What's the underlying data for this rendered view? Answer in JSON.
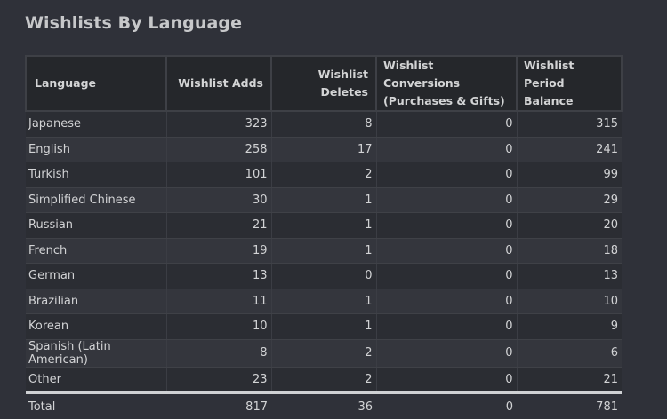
{
  "page": {
    "title": "Wishlists By Language"
  },
  "table": {
    "headers": [
      "Language",
      "Wishlist Adds",
      "Wishlist Deletes",
      "Wishlist Conversions (Purchases & Gifts)",
      "Wishlist Period Balance"
    ],
    "rows": [
      {
        "language": "Japanese",
        "adds": "323",
        "deletes": "8",
        "conversions": "0",
        "balance": "315"
      },
      {
        "language": "English",
        "adds": "258",
        "deletes": "17",
        "conversions": "0",
        "balance": "241"
      },
      {
        "language": "Turkish",
        "adds": "101",
        "deletes": "2",
        "conversions": "0",
        "balance": "99"
      },
      {
        "language": "Simplified Chinese",
        "adds": "30",
        "deletes": "1",
        "conversions": "0",
        "balance": "29"
      },
      {
        "language": "Russian",
        "adds": "21",
        "deletes": "1",
        "conversions": "0",
        "balance": "20"
      },
      {
        "language": "French",
        "adds": "19",
        "deletes": "1",
        "conversions": "0",
        "balance": "18"
      },
      {
        "language": "German",
        "adds": "13",
        "deletes": "0",
        "conversions": "0",
        "balance": "13"
      },
      {
        "language": "Brazilian",
        "adds": "11",
        "deletes": "1",
        "conversions": "0",
        "balance": "10"
      },
      {
        "language": "Korean",
        "adds": "10",
        "deletes": "1",
        "conversions": "0",
        "balance": "9"
      },
      {
        "language": "Spanish (Latin American)",
        "adds": "8",
        "deletes": "2",
        "conversions": "0",
        "balance": "6"
      },
      {
        "language": "Other",
        "adds": "23",
        "deletes": "2",
        "conversions": "0",
        "balance": "21"
      }
    ],
    "total": {
      "language": "Total",
      "adds": "817",
      "deletes": "36",
      "conversions": "0",
      "balance": "781"
    }
  },
  "colors": {
    "background": "#2f3139",
    "header_background": "#25272b",
    "row_odd": "#2b2d33",
    "row_even": "#34363d",
    "total_rule": "#cfd1d4"
  }
}
